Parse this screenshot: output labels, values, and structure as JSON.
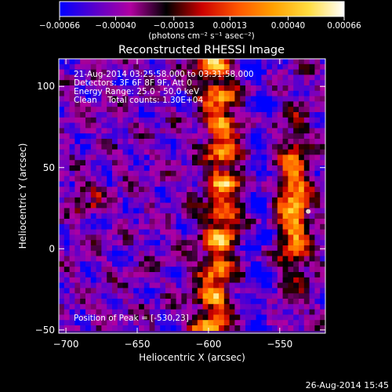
{
  "chart_data": {
    "type": "heatmap",
    "title": "Reconstructed RHESSI Image",
    "xlabel": "Heliocentric X (arcsec)",
    "ylabel": "Heliocentric Y (arcsec)",
    "xlim": [
      -705,
      -518
    ],
    "ylim": [
      -52,
      117
    ],
    "x_ticks": [
      -700,
      -650,
      -600,
      -550
    ],
    "x_tick_labels": [
      "−700",
      "−650",
      "−600",
      "−550"
    ],
    "y_ticks": [
      -50,
      0,
      50,
      100
    ],
    "y_tick_labels": [
      "−50",
      "0",
      "50",
      "100"
    ],
    "colorbar": {
      "range": [
        -0.00066,
        0.00066
      ],
      "ticks": [
        -0.00066,
        -0.0004,
        -0.00013,
        0.00013,
        0.0004,
        0.00066
      ],
      "tick_labels": [
        "−0.00066",
        "−0.00040",
        "−0.00013",
        "0.00013",
        "0.00040",
        "0.00066"
      ],
      "unit_label": "(photons cm⁻² s⁻¹ asec⁻²)",
      "colors": [
        "#0000ff",
        "#5a00cc",
        "#b000a0",
        "#000000",
        "#cc0000",
        "#ff5500",
        "#ffa000",
        "#ffdd40",
        "#ffffff"
      ]
    },
    "annotations": {
      "time_range": "21-Aug-2014 03:25:58.000 to 03:31:58.000",
      "detectors": "Detectors: 3F 6F 8F 9F, Att 0",
      "energy_range": "Energy Range: 25.0 - 50.0 keV",
      "method_counts": "Clean    Total counts: 1.30E+04",
      "peak": "Position of Peak = [-530,23]"
    },
    "bright_ridges": [
      {
        "name": "western arc",
        "x_center": -595,
        "x_range": [
          -610,
          -575
        ],
        "y_range": [
          -52,
          117
        ]
      },
      {
        "name": "eastern arc",
        "x_center": -540,
        "x_range": [
          -555,
          -525
        ],
        "y_range": [
          -20,
          70
        ]
      },
      {
        "name": "small ring",
        "x_center": -685,
        "y_range": [
          10,
          50
        ]
      }
    ],
    "peak_position": [
      -530,
      23
    ]
  },
  "footer": {
    "date_stamp": "26-Aug-2014 15:45"
  }
}
